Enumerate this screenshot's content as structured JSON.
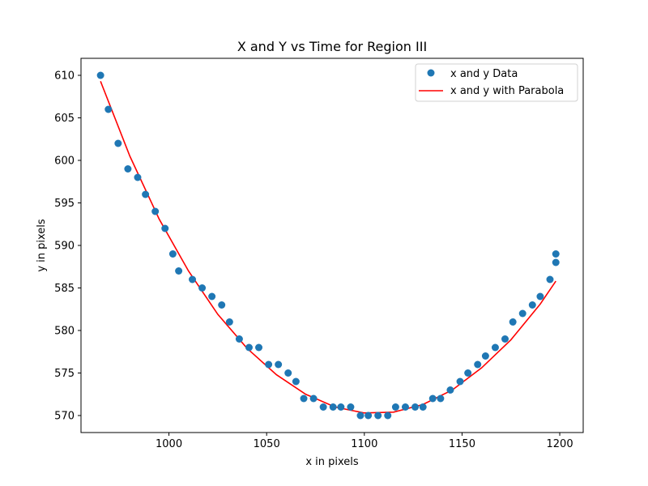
{
  "chart_data": {
    "type": "scatter",
    "title": "X and Y vs Time for Region III",
    "xlabel": "x in pixels",
    "ylabel": "y in pixels",
    "xlim": [
      955,
      1212
    ],
    "ylim": [
      568,
      612
    ],
    "xticks": [
      1000,
      1050,
      1100,
      1150,
      1200
    ],
    "yticks": [
      570,
      575,
      580,
      585,
      590,
      595,
      600,
      605,
      610
    ],
    "xtick_labels": [
      "1000",
      "1050",
      "1100",
      "1150",
      "1200"
    ],
    "ytick_labels": [
      "570",
      "575",
      "580",
      "585",
      "590",
      "595",
      "600",
      "605",
      "610"
    ],
    "grid": false,
    "legend_position": "top-right",
    "legend": [
      "x and y Data",
      "x and y with Parabola"
    ],
    "colors": {
      "scatter": "#1f77b4",
      "fit": "#ff0000"
    },
    "series": [
      {
        "name": "x and y Data",
        "kind": "scatter",
        "x": [
          965,
          969,
          974,
          979,
          984,
          988,
          993,
          998,
          1002,
          1005,
          1012,
          1017,
          1022,
          1027,
          1031,
          1036,
          1041,
          1046,
          1051,
          1056,
          1061,
          1065,
          1069,
          1074,
          1079,
          1084,
          1088,
          1093,
          1098,
          1102,
          1107,
          1112,
          1116,
          1121,
          1126,
          1130,
          1135,
          1139,
          1144,
          1149,
          1153,
          1158,
          1162,
          1167,
          1172,
          1176,
          1181,
          1186,
          1190,
          1195,
          1198,
          1198
        ],
        "y": [
          610,
          606,
          602,
          599,
          598,
          596,
          594,
          592,
          589,
          587,
          586,
          585,
          584,
          583,
          581,
          579,
          578,
          578,
          576,
          576,
          575,
          574,
          572,
          572,
          571,
          571,
          571,
          571,
          570,
          570,
          570,
          570,
          571,
          571,
          571,
          571,
          572,
          572,
          573,
          574,
          575,
          576,
          577,
          578,
          579,
          581,
          582,
          583,
          584,
          586,
          588,
          589
        ]
      },
      {
        "name": "x and y with Parabola",
        "kind": "line",
        "x": [
          965,
          980,
          995,
          1010,
          1025,
          1040,
          1055,
          1070,
          1085,
          1100,
          1115,
          1130,
          1145,
          1160,
          1175,
          1190,
          1198
        ],
        "y": [
          609.3,
          600.5,
          593.1,
          587.0,
          581.9,
          577.9,
          574.8,
          572.5,
          571.0,
          570.3,
          570.4,
          571.3,
          573.0,
          575.6,
          578.9,
          583.1,
          585.8
        ]
      }
    ]
  }
}
